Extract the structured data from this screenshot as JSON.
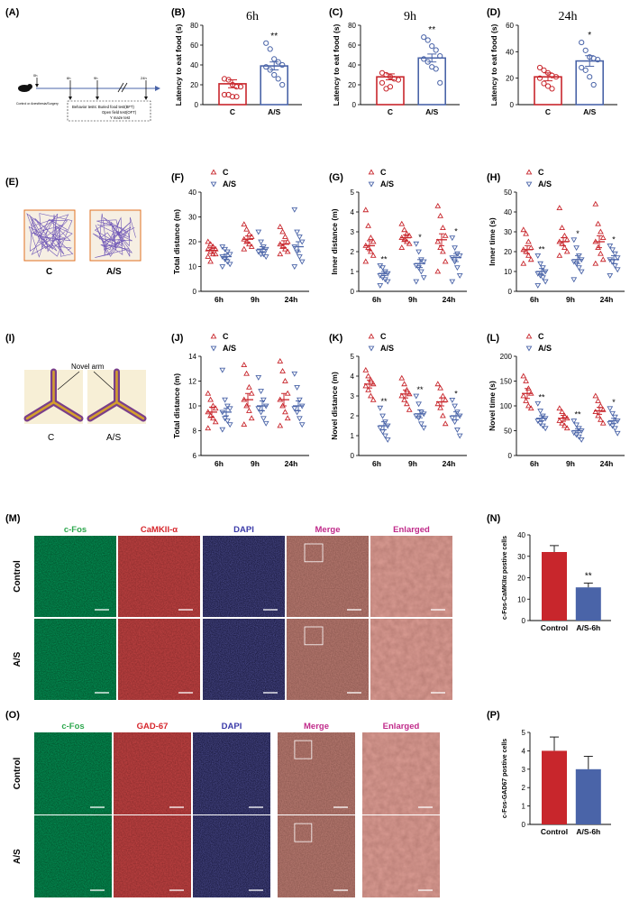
{
  "colors": {
    "control": "#c8262c",
    "as": "#4a64a8",
    "cfos": "#2fa84f",
    "camk": "#d6262c",
    "dapi": "#3a3aa8",
    "merge": "#c02a8a"
  },
  "panel_letters": [
    "(A)",
    "(B)",
    "(C)",
    "(D)",
    "(E)",
    "(F)",
    "(G)",
    "(H)",
    "(I)",
    "(J)",
    "(K)",
    "(L)",
    "(M)",
    "(N)",
    "(O)",
    "(P)"
  ],
  "timeline": {
    "tick_labels": [
      "0h",
      "6h",
      "9h",
      "24h"
    ],
    "group_label": "Control or Anesthesia/Surgery",
    "tests": [
      "Behavior tests: Buried food test(BFT)",
      "Open field test(OFT)",
      "Y maze test"
    ]
  },
  "openfield": {
    "labels": [
      "C",
      "A/S"
    ]
  },
  "ymaze": {
    "labels": [
      "C",
      "A/S"
    ],
    "arm_label": "Novel arm"
  },
  "micrographs": {
    "M": {
      "headers": [
        "c-Fos",
        "CaMKII-α",
        "DAPI",
        "Merge",
        "Enlarged"
      ],
      "rows": [
        "Control",
        "A/S"
      ]
    },
    "O": {
      "headers": [
        "c-Fos",
        "GAD-67",
        "DAPI",
        "Merge",
        "Enlarged"
      ],
      "rows": [
        "Control",
        "A/S"
      ]
    }
  },
  "chart_data": [
    {
      "panel": "B",
      "type": "bar",
      "title": "6h",
      "xlabel": "",
      "ylabel": "Latency to eat food (s)",
      "ylim": [
        0,
        80
      ],
      "yticks": [
        0,
        20,
        40,
        60,
        80
      ],
      "categories": [
        "C",
        "A/S"
      ],
      "values": [
        21,
        39
      ],
      "errors": [
        4,
        4
      ],
      "significance": "**",
      "points": [
        [
          26,
          25,
          20,
          18,
          18,
          10,
          10,
          8,
          8
        ],
        [
          62,
          56,
          46,
          43,
          40,
          38,
          35,
          30,
          26,
          20
        ]
      ]
    },
    {
      "panel": "C",
      "type": "bar",
      "title": "9h",
      "xlabel": "",
      "ylabel": "Latency to eat food (s)",
      "ylim": [
        0,
        80
      ],
      "yticks": [
        0,
        20,
        40,
        60,
        80
      ],
      "categories": [
        "C",
        "A/S"
      ],
      "values": [
        28,
        47
      ],
      "errors": [
        3,
        4
      ],
      "significance": "**",
      "points": [
        [
          32,
          30,
          28,
          26,
          25,
          22,
          16,
          18
        ],
        [
          68,
          65,
          59,
          55,
          49,
          46,
          43,
          38,
          36,
          22
        ]
      ]
    },
    {
      "panel": "D",
      "type": "bar",
      "title": "24h",
      "xlabel": "",
      "ylabel": "Latency to eat food (s)",
      "ylim": [
        0,
        60
      ],
      "yticks": [
        0,
        20,
        40,
        60
      ],
      "categories": [
        "C",
        "A/S"
      ],
      "values": [
        21,
        33
      ],
      "errors": [
        3,
        4
      ],
      "significance": "*",
      "points": [
        [
          28,
          26,
          24,
          22,
          21,
          20,
          16,
          14,
          12
        ],
        [
          47,
          41,
          36,
          35,
          34,
          28,
          26,
          21,
          15
        ]
      ]
    },
    {
      "panel": "F",
      "type": "scatter",
      "ylabel": "Total distance (m)",
      "ylim": [
        0,
        40
      ],
      "yticks": [
        0,
        10,
        20,
        30,
        40
      ],
      "categories": [
        "6h",
        "9h",
        "24h"
      ],
      "legend": [
        "C",
        "A/S"
      ],
      "series": [
        {
          "name": "C",
          "means": [
            16.5,
            21,
            19
          ],
          "sem": [
            1.2,
            1.3,
            1.4
          ],
          "points": [
            [
              20,
              19,
              18,
              17,
              17,
              16,
              15,
              15,
              14,
              12
            ],
            [
              27,
              25,
              23,
              22,
              21,
              20,
              19,
              18,
              17
            ],
            [
              26,
              24,
              22,
              20,
              19,
              18,
              17,
              16,
              15
            ]
          ]
        },
        {
          "name": "A/S",
          "means": [
            14,
            17,
            18
          ],
          "sem": [
            1.0,
            1.0,
            2.0
          ],
          "points": [
            [
              18,
              17,
              16,
              15,
              14,
              13,
              12,
              11,
              10
            ],
            [
              24,
              20,
              18,
              17,
              16,
              15,
              15,
              14
            ],
            [
              33,
              24,
              22,
              20,
              18,
              16,
              14,
              12,
              10
            ]
          ]
        }
      ],
      "significance": [
        "",
        "",
        ""
      ]
    },
    {
      "panel": "G",
      "type": "scatter",
      "ylabel": "Inner distance (m)",
      "ylim": [
        0,
        5
      ],
      "yticks": [
        0,
        1,
        2,
        3,
        4,
        5
      ],
      "categories": [
        "6h",
        "9h",
        "24h"
      ],
      "legend": [
        "C",
        "A/S"
      ],
      "series": [
        {
          "name": "C",
          "means": [
            2.3,
            2.7,
            2.6
          ],
          "sem": [
            0.25,
            0.15,
            0.3
          ],
          "points": [
            [
              4.1,
              3.3,
              2.7,
              2.5,
              2.3,
              2.2,
              2.0,
              1.8,
              1.5
            ],
            [
              3.4,
              3.1,
              2.9,
              2.8,
              2.7,
              2.6,
              2.5,
              2.4,
              2.2
            ],
            [
              4.3,
              3.8,
              3.2,
              2.8,
              2.5,
              2.2,
              2.0,
              1.5,
              1.0
            ]
          ]
        },
        {
          "name": "A/S",
          "means": [
            0.9,
            1.4,
            1.7
          ],
          "sem": [
            0.1,
            0.2,
            0.2
          ],
          "points": [
            [
              1.3,
              1.2,
              1.0,
              0.9,
              0.8,
              0.7,
              0.6,
              0.5,
              0.3
            ],
            [
              2.4,
              2.0,
              1.6,
              1.5,
              1.3,
              1.2,
              1.0,
              0.7,
              0.5
            ],
            [
              2.7,
              2.2,
              1.9,
              1.8,
              1.7,
              1.5,
              1.2,
              0.8,
              0.5
            ]
          ]
        }
      ],
      "significance": [
        "**",
        "*",
        "*"
      ]
    },
    {
      "panel": "H",
      "type": "scatter",
      "ylabel": "Inner time (s)",
      "ylim": [
        0,
        50
      ],
      "yticks": [
        0,
        10,
        20,
        30,
        40,
        50
      ],
      "categories": [
        "6h",
        "9h",
        "24h"
      ],
      "legend": [
        "C",
        "A/S"
      ],
      "series": [
        {
          "name": "C",
          "means": [
            21,
            25,
            25
          ],
          "sem": [
            2,
            2,
            3
          ],
          "points": [
            [
              31,
              29,
              25,
              22,
              21,
              20,
              18,
              16,
              14
            ],
            [
              42,
              32,
              28,
              26,
              25,
              24,
              22,
              20,
              18
            ],
            [
              44,
              34,
              30,
              27,
              25,
              22,
              19,
              16,
              14
            ]
          ]
        },
        {
          "name": "A/S",
          "means": [
            10,
            16,
            16
          ],
          "sem": [
            1.5,
            2,
            2
          ],
          "points": [
            [
              18,
              14,
              12,
              10,
              9,
              8,
              7,
              5,
              3
            ],
            [
              26,
              22,
              18,
              16,
              15,
              14,
              12,
              10,
              6
            ],
            [
              23,
              21,
              19,
              17,
              16,
              15,
              13,
              11,
              8
            ]
          ]
        }
      ],
      "significance": [
        "**",
        "*",
        "*"
      ]
    },
    {
      "panel": "J",
      "type": "scatter",
      "ylabel": "Total distance (m)",
      "ylim": [
        6,
        14
      ],
      "yticks": [
        6,
        8,
        10,
        12,
        14
      ],
      "categories": [
        "6h",
        "9h",
        "24h"
      ],
      "legend": [
        "C",
        "A/S"
      ],
      "series": [
        {
          "name": "C",
          "means": [
            9.5,
            10.5,
            10.5
          ],
          "sem": [
            0.4,
            0.5,
            0.5
          ],
          "points": [
            [
              11,
              10.5,
              10,
              9.8,
              9.5,
              9.2,
              9,
              8.7,
              8.2
            ],
            [
              13.3,
              12.6,
              11.5,
              11,
              10.5,
              10,
              9.6,
              9,
              8.5
            ],
            [
              13.6,
              12.8,
              12,
              11,
              10.5,
              10,
              9.5,
              9,
              8.4
            ]
          ]
        },
        {
          "name": "A/S",
          "means": [
            9.5,
            10,
            10
          ],
          "sem": [
            0.3,
            0.4,
            0.4
          ],
          "points": [
            [
              12.9,
              10.5,
              10,
              9.8,
              9.5,
              9,
              8.8,
              8.5,
              8.1
            ],
            [
              12.3,
              11.2,
              10.5,
              10,
              9.8,
              9.5,
              9,
              8.6
            ],
            [
              12.6,
              11.5,
              10.5,
              10,
              9.8,
              9.5,
              9,
              8.5
            ]
          ]
        }
      ],
      "significance": [
        "",
        "",
        ""
      ]
    },
    {
      "panel": "K",
      "type": "scatter",
      "ylabel": "Novel distance (m)",
      "ylim": [
        0,
        5
      ],
      "yticks": [
        0,
        1,
        2,
        3,
        4,
        5
      ],
      "categories": [
        "6h",
        "9h",
        "24h"
      ],
      "legend": [
        "C",
        "A/S"
      ],
      "series": [
        {
          "name": "C",
          "means": [
            3.6,
            3.1,
            2.7
          ],
          "sem": [
            0.2,
            0.2,
            0.2
          ],
          "points": [
            [
              4.3,
              4.0,
              3.8,
              3.6,
              3.5,
              3.3,
              3.0,
              2.8
            ],
            [
              3.9,
              3.6,
              3.3,
              3.1,
              3.0,
              2.8,
              2.6,
              2.3
            ],
            [
              3.6,
              3.4,
              3.0,
              2.8,
              2.6,
              2.4,
              2.0,
              1.6
            ]
          ]
        },
        {
          "name": "A/S",
          "means": [
            1.5,
            2.1,
            2.0
          ],
          "sem": [
            0.2,
            0.2,
            0.2
          ],
          "points": [
            [
              2.4,
              2.0,
              1.7,
              1.5,
              1.4,
              1.2,
              1.0,
              0.8
            ],
            [
              3.0,
              2.6,
              2.2,
              2.1,
              2.0,
              1.9,
              1.6,
              1.4
            ],
            [
              2.8,
              2.5,
              2.2,
              2.0,
              1.9,
              1.7,
              1.3,
              1.0
            ]
          ]
        }
      ],
      "significance": [
        "**",
        "**",
        "*"
      ]
    },
    {
      "panel": "L",
      "type": "scatter",
      "ylabel": "Novel time (s)",
      "ylim": [
        0,
        200
      ],
      "yticks": [
        0,
        50,
        100,
        150,
        200
      ],
      "categories": [
        "6h",
        "9h",
        "24h"
      ],
      "legend": [
        "C",
        "A/S"
      ],
      "series": [
        {
          "name": "C",
          "means": [
            125,
            75,
            90
          ],
          "sem": [
            10,
            6,
            7
          ],
          "points": [
            [
              160,
              150,
              135,
              125,
              120,
              110,
              100,
              95
            ],
            [
              95,
              88,
              80,
              75,
              70,
              65,
              60,
              55
            ],
            [
              120,
              110,
              100,
              92,
              88,
              80,
              72,
              65
            ]
          ]
        },
        {
          "name": "A/S",
          "means": [
            75,
            50,
            70
          ],
          "sem": [
            5,
            4,
            5
          ],
          "points": [
            [
              105,
              90,
              80,
              75,
              70,
              65,
              60,
              55
            ],
            [
              70,
              62,
              55,
              50,
              46,
              42,
              38,
              32
            ],
            [
              95,
              85,
              78,
              70,
              65,
              60,
              55,
              45
            ]
          ]
        }
      ],
      "significance": [
        "**",
        "**",
        "*"
      ]
    },
    {
      "panel": "N",
      "type": "bar",
      "ylabel": "c-Fos-CaMKIIα postive cells",
      "ylim": [
        0,
        40
      ],
      "yticks": [
        0,
        10,
        20,
        30,
        40
      ],
      "categories": [
        "Control",
        "A/S-6h"
      ],
      "values": [
        32,
        15.5
      ],
      "errors": [
        3,
        2
      ],
      "significance": "**"
    },
    {
      "panel": "P",
      "type": "bar",
      "ylabel": "c-Fos-GAD67 postive cells",
      "ylim": [
        0,
        5
      ],
      "yticks": [
        0,
        1,
        2,
        3,
        4,
        5
      ],
      "categories": [
        "Control",
        "A/S-6h"
      ],
      "values": [
        4,
        3
      ],
      "errors": [
        0.75,
        0.7
      ],
      "significance": ""
    }
  ]
}
